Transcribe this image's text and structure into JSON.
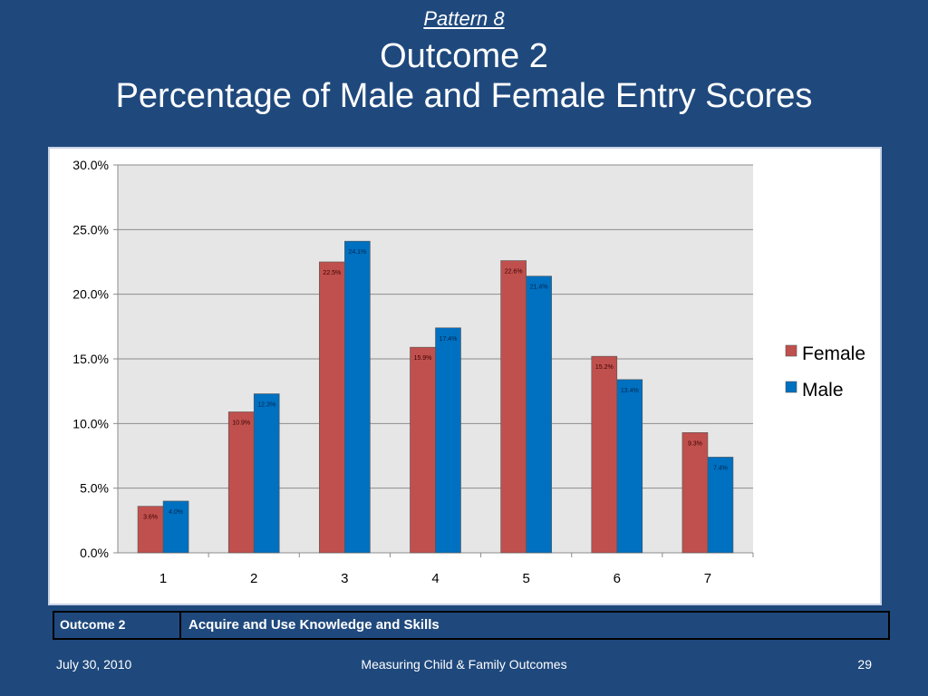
{
  "slide": {
    "pattern": "Pattern 8",
    "outcome": "Outcome 2",
    "subtitle": "Percentage of Male and Female Entry Scores"
  },
  "chart_data": {
    "type": "bar",
    "categories": [
      "1",
      "2",
      "3",
      "4",
      "5",
      "6",
      "7"
    ],
    "series": [
      {
        "name": "Female",
        "color": "#c0504d",
        "values": [
          3.6,
          10.9,
          22.5,
          15.9,
          22.6,
          15.2,
          9.3
        ],
        "labels": [
          "3.6%",
          "10.9%",
          "22.5%",
          "15.9%",
          "22.6%",
          "15.2%",
          "9.3%"
        ]
      },
      {
        "name": "Male",
        "color": "#0070c0",
        "values": [
          4.0,
          12.3,
          24.1,
          17.4,
          21.4,
          13.4,
          7.4
        ],
        "labels": [
          "4.0%",
          "12.3%",
          "24.1%",
          "17.4%",
          "21.4%",
          "13.4%",
          "7.4%"
        ]
      }
    ],
    "ylim": [
      0,
      30
    ],
    "yticks": [
      "0.0%",
      "5.0%",
      "10.0%",
      "15.0%",
      "20.0%",
      "25.0%",
      "30.0%"
    ],
    "grid": true,
    "legend": "right",
    "plot_background": "#e6e6e6"
  },
  "table": {
    "label": "Outcome 2",
    "value": "Acquire and Use Knowledge and Skills"
  },
  "footer": {
    "date": "July 30, 2010",
    "center": "Measuring Child & Family Outcomes",
    "page": "29"
  }
}
